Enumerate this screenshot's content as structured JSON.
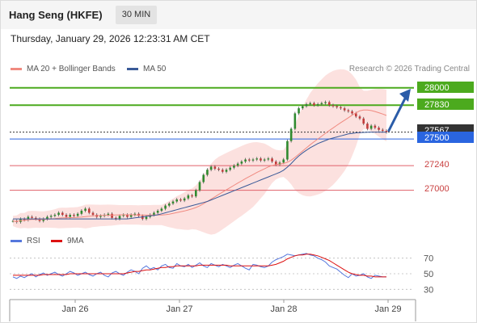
{
  "header": {
    "title": "Hang Seng (HKFE)",
    "timeframe": "30 MIN"
  },
  "timestamp": "Thursday, January 29, 2026 12:23:31 AM CET",
  "legend": {
    "ma20": "MA 20 + Bollinger Bands",
    "ma50": "MA 50",
    "research": "Research © 2026 Trading Central",
    "colors": {
      "ma20": "#f08a80",
      "ma50": "#3a5a98"
    }
  },
  "rsi_legend": {
    "rsi": "RSI",
    "ma": "9MA",
    "colors": {
      "rsi": "#5577dd",
      "ma": "#dd1111"
    }
  },
  "levels": [
    {
      "value": "28000",
      "type": "resistance",
      "color": "#4caa1e"
    },
    {
      "value": "27830",
      "type": "resistance",
      "color": "#4caa1e"
    },
    {
      "value": "27567",
      "type": "current",
      "color": "#333333"
    },
    {
      "value": "27500",
      "type": "pivot",
      "color": "#2a65e0"
    },
    {
      "value": "27240",
      "type": "support",
      "color": "#e0606a"
    },
    {
      "value": "27000",
      "type": "support",
      "color": "#e0606a"
    }
  ],
  "rsi_ticks": [
    "70",
    "50",
    "30"
  ],
  "x_ticks": [
    "Jan 26",
    "Jan 27",
    "Jan 28",
    "Jan 29"
  ],
  "chart_data": {
    "type": "candlestick",
    "price_range": [
      26650,
      28100
    ],
    "price_series": [
      26700,
      26690,
      26720,
      26710,
      26740,
      26730,
      26720,
      26700,
      26720,
      26740,
      26750,
      26760,
      26780,
      26760,
      26740,
      26760,
      26750,
      26770,
      26800,
      26820,
      26780,
      26760,
      26740,
      26750,
      26760,
      26770,
      26730,
      26720,
      26750,
      26760,
      26740,
      26760,
      26770,
      26750,
      26720,
      26740,
      26760,
      26780,
      26800,
      26820,
      26850,
      26870,
      26890,
      26910,
      26900,
      26920,
      26950,
      26940,
      27000,
      27080,
      27150,
      27200,
      27230,
      27210,
      27200,
      27180,
      27200,
      27220,
      27240,
      27260,
      27280,
      27300,
      27290,
      27300,
      27310,
      27290,
      27300,
      27310,
      27280,
      27250,
      27270,
      27300,
      27480,
      27600,
      27750,
      27800,
      27820,
      27840,
      27850,
      27830,
      27840,
      27850,
      27860,
      27830,
      27820,
      27810,
      27800,
      27780,
      27770,
      27750,
      27720,
      27700,
      27650,
      27600,
      27630,
      27610,
      27590,
      27580,
      27567
    ],
    "ma50": [
      26720,
      26720,
      26720,
      26720,
      26720,
      26720,
      26720,
      26720,
      26720,
      26720,
      26720,
      26720,
      26720,
      26720,
      26720,
      26720,
      26720,
      26720,
      26720,
      26720,
      26720,
      26720,
      26720,
      26720,
      26720,
      26720,
      26720,
      26720,
      26720,
      26720,
      26720,
      26725,
      26730,
      26735,
      26740,
      26745,
      26750,
      26755,
      26760,
      26770,
      26780,
      26790,
      26800,
      26810,
      26820,
      26830,
      26840,
      26850,
      26860,
      26870,
      26880,
      26890,
      26905,
      26920,
      26935,
      26950,
      26965,
      26980,
      26995,
      27010,
      27025,
      27040,
      27055,
      27070,
      27085,
      27100,
      27115,
      27130,
      27145,
      27160,
      27175,
      27195,
      27225,
      27260,
      27300,
      27335,
      27365,
      27390,
      27415,
      27435,
      27455,
      27470,
      27485,
      27500,
      27510,
      27520,
      27530,
      27540,
      27550,
      27555,
      27560,
      27562,
      27564,
      27566,
      27567,
      27567,
      27567,
      27567,
      27567
    ],
    "rsi": [
      46,
      44,
      47,
      45,
      48,
      50,
      46,
      49,
      51,
      48,
      50,
      52,
      49,
      47,
      50,
      53,
      51,
      48,
      50,
      52,
      49,
      47,
      50,
      52,
      48,
      46,
      51,
      53,
      50,
      48,
      52,
      55,
      53,
      50,
      57,
      60,
      56,
      58,
      55,
      60,
      62,
      58,
      57,
      63,
      60,
      59,
      62,
      58,
      61,
      64,
      60,
      58,
      63,
      61,
      59,
      62,
      60,
      58,
      61,
      63,
      60,
      57,
      55,
      62,
      61,
      59,
      58,
      60,
      65,
      68,
      70,
      72,
      75,
      74,
      73,
      74,
      75,
      76,
      74,
      73,
      70,
      68,
      65,
      60,
      58,
      56,
      52,
      48,
      45,
      50,
      47,
      48,
      50,
      46,
      44,
      48,
      47,
      46,
      46
    ],
    "rsi_ma": [
      48,
      48,
      48,
      48,
      48,
      48,
      48,
      48,
      49,
      49,
      49,
      49,
      49,
      49,
      49,
      50,
      50,
      50,
      50,
      50,
      50,
      50,
      50,
      50,
      50,
      50,
      50,
      50,
      50,
      50,
      51,
      52,
      53,
      53,
      54,
      55,
      55,
      56,
      57,
      58,
      58,
      59,
      59,
      60,
      60,
      60,
      60,
      60,
      60,
      61,
      61,
      61,
      61,
      61,
      61,
      61,
      61,
      60,
      60,
      60,
      60,
      60,
      60,
      60,
      60,
      60,
      60,
      60,
      61,
      62,
      64,
      66,
      69,
      71,
      73,
      74,
      74,
      75,
      75,
      74,
      73,
      71,
      69,
      67,
      64,
      61,
      58,
      55,
      52,
      50,
      49,
      48,
      48,
      47,
      47,
      46,
      46,
      46,
      46
    ],
    "rsi_range": [
      20,
      80
    ],
    "levels": [
      28000,
      27830,
      27567,
      27500,
      27240,
      27000
    ]
  }
}
